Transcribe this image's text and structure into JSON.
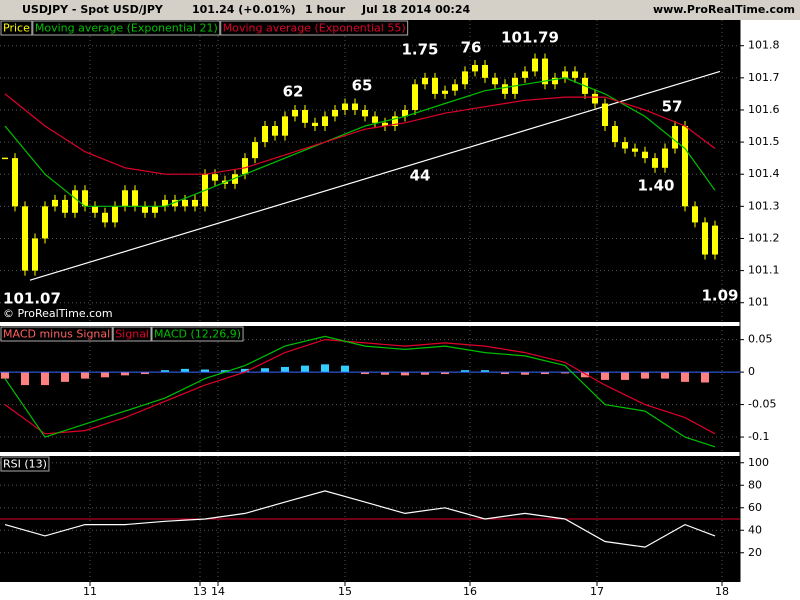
{
  "header": {
    "instrument": "USDJPY - Spot USD/JPY",
    "last": "101.24 (+0.01%)",
    "interval": "1 hour",
    "datetime": "Jul 18 2014 00:24",
    "website": "www.ProRealTime.com"
  },
  "chart_data": [
    {
      "type": "candlestick",
      "watermark": "© ProRealTime.com",
      "grid": true,
      "xlim": [
        -0.5,
        73.5
      ],
      "ylim": [
        100.94,
        101.88
      ],
      "yticks": [
        101,
        101.1,
        101.2,
        101.3,
        101.4,
        101.5,
        101.6,
        101.7,
        101.8
      ],
      "series": [
        {
          "name": "Price",
          "type": "candle",
          "color": "#ffff00",
          "x": [
            0,
            1,
            2,
            3,
            4,
            5,
            6,
            7,
            8,
            9,
            10,
            11,
            12,
            13,
            14,
            15,
            16,
            17,
            18,
            19,
            20,
            21,
            22,
            23,
            24,
            25,
            26,
            27,
            28,
            29,
            30,
            31,
            32,
            33,
            34,
            35,
            36,
            37,
            38,
            39,
            40,
            41,
            42,
            43,
            44,
            45,
            46,
            47,
            48,
            49,
            50,
            51,
            52,
            53,
            54,
            55,
            56,
            57,
            58,
            59,
            60,
            61,
            62,
            63,
            64,
            65,
            66,
            67,
            68,
            69,
            70,
            71
          ],
          "values": [
            101.45,
            101.3,
            101.1,
            101.2,
            101.3,
            101.32,
            101.28,
            101.35,
            101.3,
            101.28,
            101.25,
            101.3,
            101.35,
            101.3,
            101.28,
            101.3,
            101.32,
            101.3,
            101.32,
            101.3,
            101.4,
            101.38,
            101.37,
            101.4,
            101.45,
            101.5,
            101.55,
            101.52,
            101.58,
            101.6,
            101.56,
            101.55,
            101.58,
            101.6,
            101.62,
            101.6,
            101.58,
            101.56,
            101.55,
            101.58,
            101.6,
            101.68,
            101.7,
            101.65,
            101.66,
            101.68,
            101.72,
            101.74,
            101.7,
            101.68,
            101.65,
            101.7,
            101.72,
            101.76,
            101.68,
            101.7,
            101.72,
            101.7,
            101.65,
            101.62,
            101.55,
            101.5,
            101.48,
            101.47,
            101.45,
            101.42,
            101.48,
            101.55,
            101.3,
            101.25,
            101.15,
            101.24
          ]
        },
        {
          "name": "Moving average (Exponential 21)",
          "color": "#00c000",
          "x": [
            0,
            4,
            8,
            12,
            16,
            20,
            24,
            28,
            32,
            36,
            40,
            44,
            48,
            52,
            56,
            60,
            64,
            68,
            71
          ],
          "values": [
            101.55,
            101.4,
            101.3,
            101.3,
            101.3,
            101.35,
            101.4,
            101.45,
            101.5,
            101.55,
            101.58,
            101.62,
            101.66,
            101.68,
            101.7,
            101.65,
            101.58,
            101.48,
            101.35
          ]
        },
        {
          "name": "Moving average (Exponential 55)",
          "color": "#e0002a",
          "x": [
            0,
            4,
            8,
            12,
            16,
            20,
            24,
            28,
            32,
            36,
            40,
            44,
            48,
            52,
            56,
            60,
            64,
            68,
            71
          ],
          "values": [
            101.65,
            101.55,
            101.47,
            101.42,
            101.4,
            101.4,
            101.42,
            101.46,
            101.5,
            101.54,
            101.56,
            101.59,
            101.61,
            101.63,
            101.64,
            101.64,
            101.6,
            101.55,
            101.48
          ]
        }
      ],
      "trendline": {
        "color": "#ffffff",
        "x": [
          2.5,
          71.5
        ],
        "values": [
          101.07,
          101.72
        ]
      },
      "annotations": [
        "62",
        "65",
        "1.75",
        "76",
        "101.79",
        "44",
        "57",
        "1.40",
        "101.07",
        "1.09"
      ]
    },
    {
      "type": "macd",
      "grid": true,
      "xlim": [
        -0.5,
        73.5
      ],
      "ylim": [
        -0.123,
        0.071
      ],
      "yticks": [
        0.05,
        0,
        -0.05,
        -0.1
      ],
      "series": [
        {
          "name": "MACD minus Signal",
          "type": "histogram",
          "color": "#33ccff",
          "negative_color": "#ff8080",
          "x": [
            0,
            2,
            4,
            6,
            8,
            10,
            12,
            14,
            16,
            18,
            20,
            22,
            24,
            26,
            28,
            30,
            32,
            34,
            36,
            38,
            40,
            42,
            44,
            46,
            48,
            50,
            52,
            54,
            56,
            58,
            60,
            62,
            64,
            66,
            68,
            70
          ],
          "values": [
            -0.01,
            -0.02,
            -0.02,
            -0.015,
            -0.01,
            -0.008,
            -0.005,
            -0.003,
            0.003,
            0.005,
            0.004,
            0.003,
            0.005,
            0.006,
            0.008,
            0.01,
            0.012,
            0.01,
            -0.003,
            -0.004,
            -0.005,
            -0.004,
            -0.003,
            0.003,
            0.003,
            -0.003,
            -0.004,
            -0.003,
            -0.002,
            -0.008,
            -0.012,
            -0.012,
            -0.01,
            -0.01,
            -0.015,
            -0.016
          ]
        },
        {
          "name": "Signal",
          "color": "#e0002a",
          "x": [
            0,
            4,
            8,
            12,
            16,
            20,
            24,
            28,
            32,
            36,
            40,
            44,
            48,
            52,
            56,
            60,
            64,
            68,
            71
          ],
          "values": [
            -0.05,
            -0.095,
            -0.09,
            -0.07,
            -0.045,
            -0.02,
            0,
            0.03,
            0.05,
            0.045,
            0.04,
            0.045,
            0.04,
            0.03,
            0.015,
            -0.02,
            -0.05,
            -0.07,
            -0.095
          ]
        },
        {
          "name": "MACD (12,26,9)",
          "color": "#00c000",
          "x": [
            0,
            4,
            8,
            12,
            16,
            20,
            24,
            28,
            32,
            36,
            40,
            44,
            48,
            52,
            56,
            60,
            64,
            68,
            71
          ],
          "values": [
            -0.01,
            -0.1,
            -0.08,
            -0.06,
            -0.04,
            -0.01,
            0.01,
            0.04,
            0.055,
            0.04,
            0.035,
            0.04,
            0.03,
            0.025,
            0.01,
            -0.05,
            -0.06,
            -0.1,
            -0.115
          ]
        }
      ]
    },
    {
      "type": "line",
      "grid": true,
      "xlim": [
        -0.5,
        73.5
      ],
      "ylim": [
        -6,
        106
      ],
      "yticks": [
        20,
        40,
        60,
        80,
        100
      ],
      "hline": {
        "value": 50,
        "color": "#e0002a"
      },
      "xticks": [
        {
          "value": 8.5,
          "label": "11"
        },
        {
          "value": 19.5,
          "label": "13"
        },
        {
          "value": 21.3,
          "label": "14"
        },
        {
          "value": 34,
          "label": "15"
        },
        {
          "value": 46.5,
          "label": "16"
        },
        {
          "value": 59.2,
          "label": "17"
        },
        {
          "value": 71.7,
          "label": "18"
        }
      ],
      "series": [
        {
          "name": "RSI (13)",
          "color": "#ffffff",
          "x": [
            0,
            4,
            8,
            12,
            16,
            20,
            24,
            28,
            32,
            36,
            40,
            44,
            48,
            52,
            56,
            60,
            64,
            68,
            71
          ],
          "values": [
            45,
            35,
            45,
            45,
            48,
            50,
            55,
            65,
            75,
            65,
            55,
            60,
            50,
            55,
            50,
            30,
            25,
            45,
            35
          ]
        }
      ]
    }
  ]
}
